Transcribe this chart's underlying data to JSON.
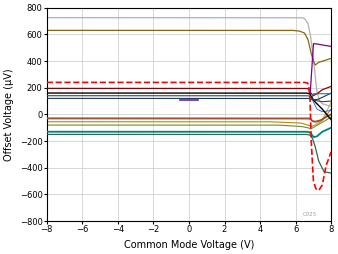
{
  "xlabel": "Common Mode Voltage (V)",
  "ylabel": "Offset Voltage (μV)",
  "xlim": [
    -8,
    8
  ],
  "ylim": [
    -800,
    800
  ],
  "xticks": [
    -8,
    -6,
    -4,
    -2,
    0,
    2,
    4,
    6,
    8
  ],
  "yticks": [
    -800,
    -600,
    -400,
    -200,
    0,
    200,
    400,
    600,
    800
  ],
  "background_color": "#ffffff",
  "grid_color": "#c8c8c8",
  "watermark": "C025",
  "lines": [
    {
      "segments": [
        {
          "x": [
            -8,
            6.3
          ],
          "y": [
            725,
            725
          ]
        },
        {
          "x": [
            6.3,
            6.5
          ],
          "y": [
            725,
            720
          ]
        },
        {
          "x": [
            6.5,
            6.7
          ],
          "y": [
            720,
            680
          ]
        },
        {
          "x": [
            6.7,
            6.85
          ],
          "y": [
            680,
            580
          ]
        },
        {
          "x": [
            6.85,
            7.0
          ],
          "y": [
            580,
            420
          ]
        },
        {
          "x": [
            7.0,
            7.1
          ],
          "y": [
            420,
            290
          ]
        },
        {
          "x": [
            7.1,
            7.2
          ],
          "y": [
            290,
            170
          ]
        },
        {
          "x": [
            7.2,
            7.35
          ],
          "y": [
            170,
            100
          ]
        },
        {
          "x": [
            7.35,
            7.5
          ],
          "y": [
            100,
            80
          ]
        },
        {
          "x": [
            7.5,
            8.0
          ],
          "y": [
            80,
            60
          ]
        }
      ],
      "color": "#b0b0b0",
      "lw": 0.9,
      "ls": "-",
      "zorder": 2
    },
    {
      "segments": [
        {
          "x": [
            -8,
            5.8
          ],
          "y": [
            630,
            630
          ]
        },
        {
          "x": [
            5.8,
            6.2
          ],
          "y": [
            630,
            625
          ]
        },
        {
          "x": [
            6.2,
            6.5
          ],
          "y": [
            625,
            610
          ]
        },
        {
          "x": [
            6.5,
            6.7
          ],
          "y": [
            610,
            560
          ]
        },
        {
          "x": [
            6.7,
            6.85
          ],
          "y": [
            560,
            470
          ]
        },
        {
          "x": [
            6.85,
            7.0
          ],
          "y": [
            470,
            400
          ]
        },
        {
          "x": [
            7.0,
            7.1
          ],
          "y": [
            400,
            370
          ]
        },
        {
          "x": [
            7.1,
            7.3
          ],
          "y": [
            370,
            390
          ]
        },
        {
          "x": [
            7.3,
            8.0
          ],
          "y": [
            390,
            420
          ]
        }
      ],
      "color": "#8b6410",
      "lw": 0.9,
      "ls": "-",
      "zorder": 2
    },
    {
      "segments": [
        {
          "x": [
            -8,
            6.5
          ],
          "y": [
            240,
            240
          ]
        },
        {
          "x": [
            6.5,
            6.68
          ],
          "y": [
            240,
            235
          ]
        },
        {
          "x": [
            6.68,
            6.75
          ],
          "y": [
            235,
            200
          ]
        },
        {
          "x": [
            6.75,
            6.82
          ],
          "y": [
            200,
            100
          ]
        },
        {
          "x": [
            6.82,
            6.88
          ],
          "y": [
            100,
            -200
          ]
        },
        {
          "x": [
            6.88,
            7.0
          ],
          "y": [
            -200,
            -500
          ]
        },
        {
          "x": [
            7.0,
            7.15
          ],
          "y": [
            -500,
            -560
          ]
        },
        {
          "x": [
            7.15,
            7.3
          ],
          "y": [
            -560,
            -570
          ]
        },
        {
          "x": [
            7.3,
            7.5
          ],
          "y": [
            -570,
            -530
          ]
        },
        {
          "x": [
            7.5,
            7.7
          ],
          "y": [
            -530,
            -390
          ]
        },
        {
          "x": [
            7.7,
            8.0
          ],
          "y": [
            -390,
            -280
          ]
        }
      ],
      "color": "#ff0000",
      "lw": 1.2,
      "ls": "--",
      "zorder": 6
    },
    {
      "segments": [
        {
          "x": [
            -8,
            6.6
          ],
          "y": [
            195,
            195
          ]
        },
        {
          "x": [
            6.6,
            6.75
          ],
          "y": [
            195,
            190
          ]
        },
        {
          "x": [
            6.75,
            6.85
          ],
          "y": [
            190,
            160
          ]
        },
        {
          "x": [
            6.85,
            7.0
          ],
          "y": [
            160,
            140
          ]
        },
        {
          "x": [
            7.0,
            7.2
          ],
          "y": [
            140,
            155
          ]
        },
        {
          "x": [
            7.2,
            7.5
          ],
          "y": [
            155,
            185
          ]
        },
        {
          "x": [
            7.5,
            8.0
          ],
          "y": [
            185,
            210
          ]
        }
      ],
      "color": "#8b0000",
      "lw": 0.9,
      "ls": "-",
      "zorder": 3
    },
    {
      "segments": [
        {
          "x": [
            -8,
            6.6
          ],
          "y": [
            160,
            160
          ]
        },
        {
          "x": [
            6.6,
            6.78
          ],
          "y": [
            160,
            155
          ]
        },
        {
          "x": [
            6.78,
            6.9
          ],
          "y": [
            155,
            130
          ]
        },
        {
          "x": [
            6.9,
            7.05
          ],
          "y": [
            130,
            100
          ]
        },
        {
          "x": [
            7.05,
            7.2
          ],
          "y": [
            100,
            80
          ]
        },
        {
          "x": [
            7.2,
            7.5
          ],
          "y": [
            80,
            40
          ]
        },
        {
          "x": [
            7.5,
            8.0
          ],
          "y": [
            40,
            -40
          ]
        }
      ],
      "color": "#000000",
      "lw": 1.0,
      "ls": "-",
      "zorder": 4
    },
    {
      "segments": [
        {
          "x": [
            -8,
            6.6
          ],
          "y": [
            140,
            140
          ]
        },
        {
          "x": [
            6.6,
            6.78
          ],
          "y": [
            140,
            138
          ]
        },
        {
          "x": [
            6.78,
            6.9
          ],
          "y": [
            138,
            120
          ]
        },
        {
          "x": [
            6.9,
            7.1
          ],
          "y": [
            120,
            105
          ]
        },
        {
          "x": [
            7.1,
            7.5
          ],
          "y": [
            105,
            95
          ]
        },
        {
          "x": [
            7.5,
            8.0
          ],
          "y": [
            95,
            100
          ]
        }
      ],
      "color": "#404040",
      "lw": 0.8,
      "ls": "-",
      "zorder": 4
    },
    {
      "segments": [
        {
          "x": [
            -8,
            6.6
          ],
          "y": [
            120,
            120
          ]
        },
        {
          "x": [
            6.6,
            6.82
          ],
          "y": [
            120,
            118
          ]
        },
        {
          "x": [
            6.82,
            7.0
          ],
          "y": [
            118,
            108
          ]
        },
        {
          "x": [
            7.0,
            7.3
          ],
          "y": [
            108,
            115
          ]
        },
        {
          "x": [
            7.3,
            7.7
          ],
          "y": [
            115,
            140
          ]
        },
        {
          "x": [
            7.7,
            8.0
          ],
          "y": [
            140,
            160
          ]
        }
      ],
      "color": "#1a3a6a",
      "lw": 0.8,
      "ls": "-",
      "zorder": 3
    },
    {
      "segments": [
        {
          "x": [
            -0.5,
            0.5
          ],
          "y": [
            110,
            110
          ]
        }
      ],
      "color": "#6b238e",
      "lw": 1.2,
      "ls": "-",
      "zorder": 5
    },
    {
      "segments": [
        {
          "x": [
            -8,
            6.6
          ],
          "y": [
            -30,
            -30
          ]
        },
        {
          "x": [
            6.6,
            6.82
          ],
          "y": [
            -30,
            -32
          ]
        },
        {
          "x": [
            6.82,
            6.95
          ],
          "y": [
            -32,
            -50
          ]
        },
        {
          "x": [
            6.95,
            7.1
          ],
          "y": [
            -50,
            -55
          ]
        },
        {
          "x": [
            7.1,
            7.4
          ],
          "y": [
            -55,
            -45
          ]
        },
        {
          "x": [
            7.4,
            7.7
          ],
          "y": [
            -45,
            -20
          ]
        },
        {
          "x": [
            7.7,
            8.0
          ],
          "y": [
            -20,
            0
          ]
        }
      ],
      "color": "#a0522d",
      "lw": 1.4,
      "ls": "-",
      "zorder": 3
    },
    {
      "segments": [
        {
          "x": [
            -8,
            5.0
          ],
          "y": [
            -80,
            -80
          ]
        },
        {
          "x": [
            5.0,
            6.3
          ],
          "y": [
            -80,
            -90
          ]
        },
        {
          "x": [
            6.3,
            6.7
          ],
          "y": [
            -90,
            -100
          ]
        },
        {
          "x": [
            6.7,
            6.85
          ],
          "y": [
            -100,
            -110
          ]
        },
        {
          "x": [
            6.85,
            7.1
          ],
          "y": [
            -110,
            -90
          ]
        },
        {
          "x": [
            7.1,
            7.5
          ],
          "y": [
            -90,
            -60
          ]
        },
        {
          "x": [
            7.5,
            8.0
          ],
          "y": [
            -60,
            -20
          ]
        }
      ],
      "color": "#6b8e23",
      "lw": 0.8,
      "ls": "-",
      "zorder": 2
    },
    {
      "segments": [
        {
          "x": [
            -8,
            4.5
          ],
          "y": [
            -55,
            -55
          ]
        },
        {
          "x": [
            4.5,
            6.3
          ],
          "y": [
            -55,
            -65
          ]
        },
        {
          "x": [
            6.3,
            6.7
          ],
          "y": [
            -65,
            -80
          ]
        },
        {
          "x": [
            6.7,
            6.9
          ],
          "y": [
            -80,
            -90
          ]
        },
        {
          "x": [
            6.9,
            7.1
          ],
          "y": [
            -90,
            -80
          ]
        },
        {
          "x": [
            7.1,
            7.5
          ],
          "y": [
            -80,
            -45
          ]
        },
        {
          "x": [
            7.5,
            8.0
          ],
          "y": [
            -45,
            40
          ]
        }
      ],
      "color": "#b8860b",
      "lw": 0.8,
      "ls": "-",
      "zorder": 2
    },
    {
      "segments": [
        {
          "x": [
            -8,
            6.6
          ],
          "y": [
            -130,
            -130
          ]
        },
        {
          "x": [
            6.6,
            6.78
          ],
          "y": [
            -130,
            -133
          ]
        },
        {
          "x": [
            6.78,
            6.9
          ],
          "y": [
            -133,
            -150
          ]
        },
        {
          "x": [
            6.9,
            7.0
          ],
          "y": [
            -150,
            -170
          ]
        },
        {
          "x": [
            7.0,
            7.2
          ],
          "y": [
            -170,
            -165
          ]
        },
        {
          "x": [
            7.2,
            7.5
          ],
          "y": [
            -165,
            -130
          ]
        },
        {
          "x": [
            7.5,
            8.0
          ],
          "y": [
            -130,
            -100
          ]
        }
      ],
      "color": "#008080",
      "lw": 1.3,
      "ls": "-",
      "zorder": 3
    },
    {
      "segments": [
        {
          "x": [
            -8,
            6.6
          ],
          "y": [
            -150,
            -150
          ]
        },
        {
          "x": [
            6.6,
            6.8
          ],
          "y": [
            -150,
            -155
          ]
        },
        {
          "x": [
            6.8,
            6.95
          ],
          "y": [
            -155,
            -180
          ]
        },
        {
          "x": [
            6.95,
            7.1
          ],
          "y": [
            -180,
            -240
          ]
        },
        {
          "x": [
            7.1,
            7.3
          ],
          "y": [
            -240,
            -350
          ]
        },
        {
          "x": [
            7.3,
            7.6
          ],
          "y": [
            -350,
            -430
          ]
        },
        {
          "x": [
            7.6,
            8.0
          ],
          "y": [
            -430,
            -440
          ]
        }
      ],
      "color": "#2f6a4f",
      "lw": 0.9,
      "ls": "-",
      "zorder": 3
    },
    {
      "segments": [
        {
          "x": [
            6.82,
            7.0
          ],
          "y": [
            155,
            530
          ]
        },
        {
          "x": [
            7.0,
            7.1
          ],
          "y": [
            530,
            530
          ]
        },
        {
          "x": [
            7.1,
            7.5
          ],
          "y": [
            530,
            520
          ]
        },
        {
          "x": [
            7.5,
            8.0
          ],
          "y": [
            520,
            510
          ]
        }
      ],
      "color": "#800080",
      "lw": 0.9,
      "ls": "-",
      "zorder": 3
    },
    {
      "segments": [
        {
          "x": [
            6.9,
            7.0
          ],
          "y": [
            120,
            155
          ]
        },
        {
          "x": [
            7.0,
            7.2
          ],
          "y": [
            155,
            155
          ]
        },
        {
          "x": [
            7.2,
            7.5
          ],
          "y": [
            155,
            155
          ]
        },
        {
          "x": [
            7.5,
            8.0
          ],
          "y": [
            155,
            155
          ]
        }
      ],
      "color": "#008b8b",
      "lw": 0.8,
      "ls": "-",
      "zorder": 3
    },
    {
      "segments": [
        {
          "x": [
            7.0,
            7.5
          ],
          "y": [
            -90,
            -40
          ]
        },
        {
          "x": [
            7.5,
            8.0
          ],
          "y": [
            -40,
            90
          ]
        }
      ],
      "color": "#bdb76b",
      "lw": 0.8,
      "ls": "-",
      "zorder": 2
    },
    {
      "segments": [
        {
          "x": [
            6.95,
            7.05
          ],
          "y": [
            108,
            80
          ]
        },
        {
          "x": [
            7.05,
            7.2
          ],
          "y": [
            80,
            40
          ]
        },
        {
          "x": [
            7.2,
            7.5
          ],
          "y": [
            40,
            20
          ]
        },
        {
          "x": [
            7.5,
            8.0
          ],
          "y": [
            20,
            30
          ]
        }
      ],
      "color": "#4169e1",
      "lw": 0.7,
      "ls": "-",
      "zorder": 2
    }
  ]
}
